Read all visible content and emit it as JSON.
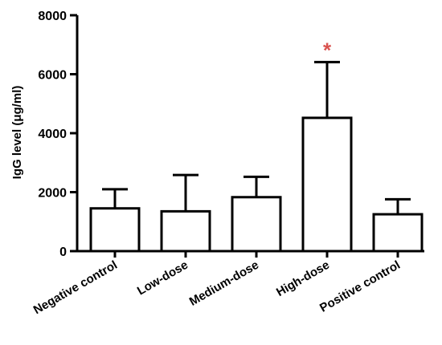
{
  "chart_data": {
    "type": "bar",
    "title": "",
    "xlabel": "",
    "ylabel": "IgG level (μg/ml)",
    "ylim": [
      0,
      8000
    ],
    "yticks": [
      0,
      2000,
      4000,
      6000,
      8000
    ],
    "grid": false,
    "legend": "none",
    "categories": [
      "Negative control",
      "Low-dose",
      "Medium-dose",
      "High-dose",
      "Positive control"
    ],
    "series": [
      {
        "values": [
          1450,
          1350,
          1830,
          4520,
          1250
        ],
        "error_upper": [
          650,
          1230,
          690,
          1890,
          510
        ]
      }
    ],
    "annotations": [
      {
        "category": "High-dose",
        "text": "*",
        "color": "#d9534f"
      }
    ],
    "colors": {
      "bar_fill": "#ffffff",
      "bar_stroke": "#000000",
      "annotation": "#d9534f"
    }
  }
}
